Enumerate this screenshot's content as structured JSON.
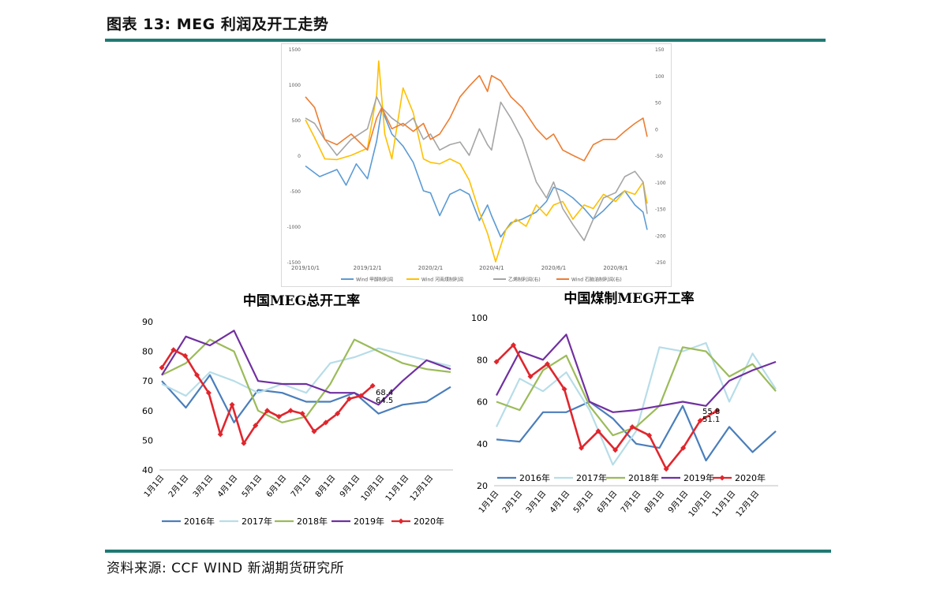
{
  "header": {
    "figure_title": "图表 13: MEG 利润及开工走势"
  },
  "footer": {
    "source": "资料来源: CCF WIND 新湖期货研究所"
  },
  "colors": {
    "rule": "#1f7a73",
    "blue": "#4a7ebb",
    "lightblue": "#b7dde8",
    "gold": "#f5c518",
    "gray": "#a5a5a5",
    "orange": "#ed7d31",
    "green": "#9bbb59",
    "purple": "#7030a0",
    "red": "#e0262d"
  },
  "chart_data": [
    {
      "type": "line",
      "title": "",
      "x_ticks": [
        "2019/10/1",
        "2019/12/1",
        "2020/2/1",
        "2020/4/1",
        "2020/6/1",
        "2020/8/1"
      ],
      "x_range": [
        "2019/10/1",
        "2020/9/1"
      ],
      "y_left_range": [
        -1500,
        1500
      ],
      "y_left_ticks": [
        -1500,
        -1000,
        -500,
        0,
        500,
        1000,
        1500
      ],
      "y_right_range": [
        -250,
        150
      ],
      "y_right_ticks": [
        -250,
        -200,
        -150,
        -100,
        -50,
        0,
        50,
        100,
        150
      ],
      "grid": false,
      "legend_position": "bottom",
      "series": [
        {
          "name": "Wind 甲醇制利润",
          "axis": "left",
          "color": "#5b9bd5",
          "points": [
            [
              "2019/10/1",
              -150
            ],
            [
              "2019/10/15",
              -300
            ],
            [
              "2019/11/1",
              -200
            ],
            [
              "2019/11/10",
              -420
            ],
            [
              "2019/11/20",
              -120
            ],
            [
              "2019/12/1",
              -330
            ],
            [
              "2019/12/10",
              200
            ],
            [
              "2019/12/15",
              650
            ],
            [
              "2019/12/25",
              300
            ],
            [
              "2020/1/5",
              130
            ],
            [
              "2020/1/15",
              -100
            ],
            [
              "2020/1/25",
              -500
            ],
            [
              "2020/2/1",
              -530
            ],
            [
              "2020/2/10",
              -850
            ],
            [
              "2020/2/20",
              -550
            ],
            [
              "2020/3/1",
              -480
            ],
            [
              "2020/3/10",
              -550
            ],
            [
              "2020/3/20",
              -920
            ],
            [
              "2020/3/28",
              -700
            ],
            [
              "2020/4/1",
              -850
            ],
            [
              "2020/4/10",
              -1150
            ],
            [
              "2020/4/20",
              -950
            ],
            [
              "2020/5/1",
              -900
            ],
            [
              "2020/5/15",
              -800
            ],
            [
              "2020/5/25",
              -650
            ],
            [
              "2020/6/1",
              -450
            ],
            [
              "2020/6/10",
              -500
            ],
            [
              "2020/6/20",
              -600
            ],
            [
              "2020/7/1",
              -750
            ],
            [
              "2020/7/10",
              -900
            ],
            [
              "2020/7/20",
              -780
            ],
            [
              "2020/8/1",
              -600
            ],
            [
              "2020/8/10",
              -500
            ],
            [
              "2020/8/20",
              -700
            ],
            [
              "2020/8/28",
              -800
            ],
            [
              "2020/9/1",
              -1050
            ]
          ]
        },
        {
          "name": "Wind 河南煤制利润",
          "axis": "left",
          "color": "#ffc000",
          "points": [
            [
              "2019/10/1",
              500
            ],
            [
              "2019/10/10",
              250
            ],
            [
              "2019/10/20",
              -50
            ],
            [
              "2019/11/1",
              -60
            ],
            [
              "2019/11/15",
              0
            ],
            [
              "2019/12/1",
              100
            ],
            [
              "2019/12/10",
              850
            ],
            [
              "2019/12/12",
              1330
            ],
            [
              "2019/12/18",
              300
            ],
            [
              "2019/12/25",
              -50
            ],
            [
              "2020/1/5",
              950
            ],
            [
              "2020/1/15",
              600
            ],
            [
              "2020/1/25",
              -50
            ],
            [
              "2020/2/1",
              -100
            ],
            [
              "2020/2/10",
              -120
            ],
            [
              "2020/2/20",
              -50
            ],
            [
              "2020/3/1",
              -120
            ],
            [
              "2020/3/10",
              -350
            ],
            [
              "2020/3/20",
              -800
            ],
            [
              "2020/3/28",
              -1100
            ],
            [
              "2020/4/5",
              -1500
            ],
            [
              "2020/4/15",
              -1050
            ],
            [
              "2020/4/25",
              -900
            ],
            [
              "2020/5/5",
              -1000
            ],
            [
              "2020/5/15",
              -700
            ],
            [
              "2020/5/25",
              -850
            ],
            [
              "2020/6/1",
              -700
            ],
            [
              "2020/6/10",
              -650
            ],
            [
              "2020/6/20",
              -900
            ],
            [
              "2020/7/1",
              -700
            ],
            [
              "2020/7/10",
              -750
            ],
            [
              "2020/7/20",
              -550
            ],
            [
              "2020/8/1",
              -650
            ],
            [
              "2020/8/10",
              -500
            ],
            [
              "2020/8/20",
              -550
            ],
            [
              "2020/8/28",
              -380
            ],
            [
              "2020/9/1",
              -680
            ]
          ]
        },
        {
          "name": "乙烯制利润(右)",
          "axis": "right",
          "color": "#a5a5a5",
          "points": [
            [
              "2019/10/1",
              20
            ],
            [
              "2019/10/10",
              10
            ],
            [
              "2019/10/20",
              -20
            ],
            [
              "2019/11/1",
              -50
            ],
            [
              "2019/11/15",
              -20
            ],
            [
              "2019/12/1",
              0
            ],
            [
              "2019/12/10",
              60
            ],
            [
              "2019/12/15",
              40
            ],
            [
              "2019/12/25",
              20
            ],
            [
              "2020/1/5",
              5
            ],
            [
              "2020/1/15",
              20
            ],
            [
              "2020/1/25",
              -20
            ],
            [
              "2020/2/1",
              -10
            ],
            [
              "2020/2/10",
              -40
            ],
            [
              "2020/2/20",
              -30
            ],
            [
              "2020/3/1",
              -25
            ],
            [
              "2020/3/10",
              -50
            ],
            [
              "2020/3/20",
              0
            ],
            [
              "2020/3/28",
              -30
            ],
            [
              "2020/4/1",
              -40
            ],
            [
              "2020/4/10",
              50
            ],
            [
              "2020/4/20",
              20
            ],
            [
              "2020/5/1",
              -20
            ],
            [
              "2020/5/15",
              -100
            ],
            [
              "2020/5/25",
              -130
            ],
            [
              "2020/6/1",
              -100
            ],
            [
              "2020/6/10",
              -150
            ],
            [
              "2020/6/20",
              -180
            ],
            [
              "2020/7/1",
              -210
            ],
            [
              "2020/7/10",
              -170
            ],
            [
              "2020/7/20",
              -130
            ],
            [
              "2020/8/1",
              -120
            ],
            [
              "2020/8/10",
              -90
            ],
            [
              "2020/8/20",
              -80
            ],
            [
              "2020/8/28",
              -100
            ],
            [
              "2020/9/1",
              -160
            ]
          ]
        },
        {
          "name": "Wind 石脑油制利润(右)",
          "axis": "right",
          "color": "#ed7d31",
          "points": [
            [
              "2019/10/1",
              60
            ],
            [
              "2019/10/10",
              40
            ],
            [
              "2019/10/20",
              -20
            ],
            [
              "2019/11/1",
              -30
            ],
            [
              "2019/11/15",
              -10
            ],
            [
              "2019/12/1",
              -40
            ],
            [
              "2019/12/10",
              20
            ],
            [
              "2019/12/15",
              40
            ],
            [
              "2019/12/25",
              0
            ],
            [
              "2020/1/5",
              10
            ],
            [
              "2020/1/15",
              -5
            ],
            [
              "2020/1/25",
              10
            ],
            [
              "2020/2/1",
              -20
            ],
            [
              "2020/2/10",
              -10
            ],
            [
              "2020/2/20",
              20
            ],
            [
              "2020/3/1",
              60
            ],
            [
              "2020/3/10",
              80
            ],
            [
              "2020/3/20",
              100
            ],
            [
              "2020/3/28",
              70
            ],
            [
              "2020/4/1",
              100
            ],
            [
              "2020/4/10",
              90
            ],
            [
              "2020/4/20",
              60
            ],
            [
              "2020/5/1",
              40
            ],
            [
              "2020/5/15",
              0
            ],
            [
              "2020/5/25",
              -20
            ],
            [
              "2020/6/1",
              -10
            ],
            [
              "2020/6/10",
              -40
            ],
            [
              "2020/6/20",
              -50
            ],
            [
              "2020/7/1",
              -60
            ],
            [
              "2020/7/10",
              -30
            ],
            [
              "2020/7/20",
              -20
            ],
            [
              "2020/8/1",
              -20
            ],
            [
              "2020/8/10",
              -5
            ],
            [
              "2020/8/20",
              10
            ],
            [
              "2020/8/28",
              20
            ],
            [
              "2020/9/1",
              -15
            ]
          ]
        }
      ]
    },
    {
      "type": "line",
      "title": "中国MEG总开工率",
      "x_ticks": [
        "1月1日",
        "2月1日",
        "3月1日",
        "4月1日",
        "5月1日",
        "6月1日",
        "7月1日",
        "8月1日",
        "9月1日",
        "10月1日",
        "11月1日",
        "12月1日"
      ],
      "ylim": [
        40,
        90
      ],
      "y_ticks": [
        40,
        50,
        60,
        70,
        80,
        90
      ],
      "grid": false,
      "legend_position": "bottom",
      "annotations": [
        "68.4",
        "64.5"
      ],
      "series": [
        {
          "name": "2016年",
          "color": "#4a7ebb",
          "values": [
            70,
            61,
            72,
            56,
            67,
            66,
            63,
            63,
            66,
            59,
            62,
            63,
            68
          ]
        },
        {
          "name": "2017年",
          "color": "#b7dde8",
          "values": [
            69,
            65,
            73,
            70,
            66,
            69,
            66,
            76,
            78,
            81,
            79,
            77,
            75
          ]
        },
        {
          "name": "2018年",
          "color": "#9bbb59",
          "values": [
            72,
            76,
            84,
            80,
            60,
            56,
            58,
            69,
            84,
            80,
            76,
            74,
            73
          ]
        },
        {
          "name": "2019年",
          "color": "#7030a0",
          "values": [
            72,
            85,
            82,
            87,
            70,
            69,
            69,
            66,
            66,
            62,
            70,
            77,
            74
          ]
        },
        {
          "name": "2020年",
          "color": "#e0262d",
          "marker": "diamond",
          "values": [
            74.5,
            80.5,
            78.5,
            72,
            66,
            52,
            62,
            49,
            55,
            60,
            58,
            60,
            59,
            53,
            56,
            59,
            64,
            65,
            68.4
          ]
        }
      ]
    },
    {
      "type": "line",
      "title": "中国煤制MEG开工率",
      "x_ticks": [
        "1月1日",
        "2月1日",
        "3月1日",
        "4月1日",
        "5月1日",
        "6月1日",
        "7月1日",
        "8月1日",
        "9月1日",
        "10月1日",
        "11月1日",
        "12月1日"
      ],
      "ylim": [
        20,
        100
      ],
      "y_ticks": [
        20,
        40,
        60,
        80,
        100
      ],
      "grid": false,
      "legend_position": "bottom",
      "annotations": [
        "55.8",
        "51.1"
      ],
      "series": [
        {
          "name": "2016年",
          "color": "#4a7ebb",
          "values": [
            42,
            41,
            55,
            55,
            60,
            52,
            40,
            38,
            58,
            32,
            48,
            36,
            46
          ]
        },
        {
          "name": "2017年",
          "color": "#b7dde8",
          "values": [
            48,
            71,
            65,
            74,
            56,
            30,
            46,
            86,
            84,
            88,
            60,
            83,
            66
          ]
        },
        {
          "name": "2018年",
          "color": "#9bbb59",
          "values": [
            60,
            56,
            75,
            82,
            58,
            44,
            48,
            58,
            86,
            84,
            72,
            78,
            65
          ]
        },
        {
          "name": "2019年",
          "color": "#7030a0",
          "values": [
            63,
            84,
            80,
            92,
            60,
            55,
            56,
            58,
            60,
            58,
            70,
            75,
            79
          ]
        },
        {
          "name": "2020年",
          "color": "#e0262d",
          "marker": "diamond",
          "values": [
            79,
            87,
            72,
            78,
            66,
            38,
            46,
            37,
            48,
            44,
            28,
            38,
            51,
            55.8
          ]
        }
      ]
    }
  ]
}
